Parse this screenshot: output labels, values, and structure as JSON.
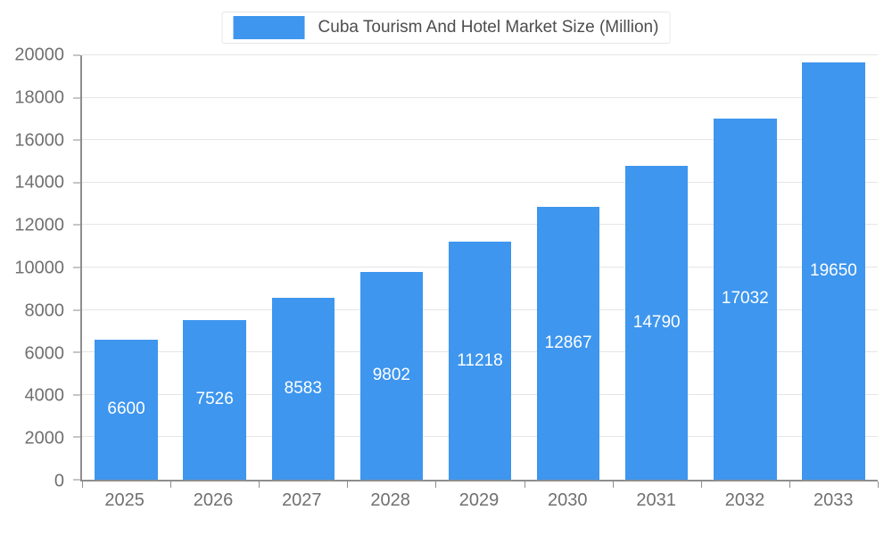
{
  "chart_data": {
    "type": "bar",
    "title": "Cuba Tourism And Hotel Market Size (Million)",
    "categories": [
      "2025",
      "2026",
      "2027",
      "2028",
      "2029",
      "2030",
      "2031",
      "2032",
      "2033"
    ],
    "values": [
      6600,
      7526,
      8583,
      9802,
      11218,
      12867,
      14790,
      17032,
      19650
    ],
    "xlabel": "",
    "ylabel": "",
    "ylim": [
      0,
      20000
    ],
    "ytick_step": 2000,
    "grid": true,
    "legend_position": "top",
    "bar_color": "#3e96ee",
    "value_label_color": "#ffffff",
    "axis_text_color": "#707070",
    "title_color": "#4d4d4d",
    "grid_color": "#e5e5e5",
    "axis_line_color": "#8e8e8e"
  }
}
